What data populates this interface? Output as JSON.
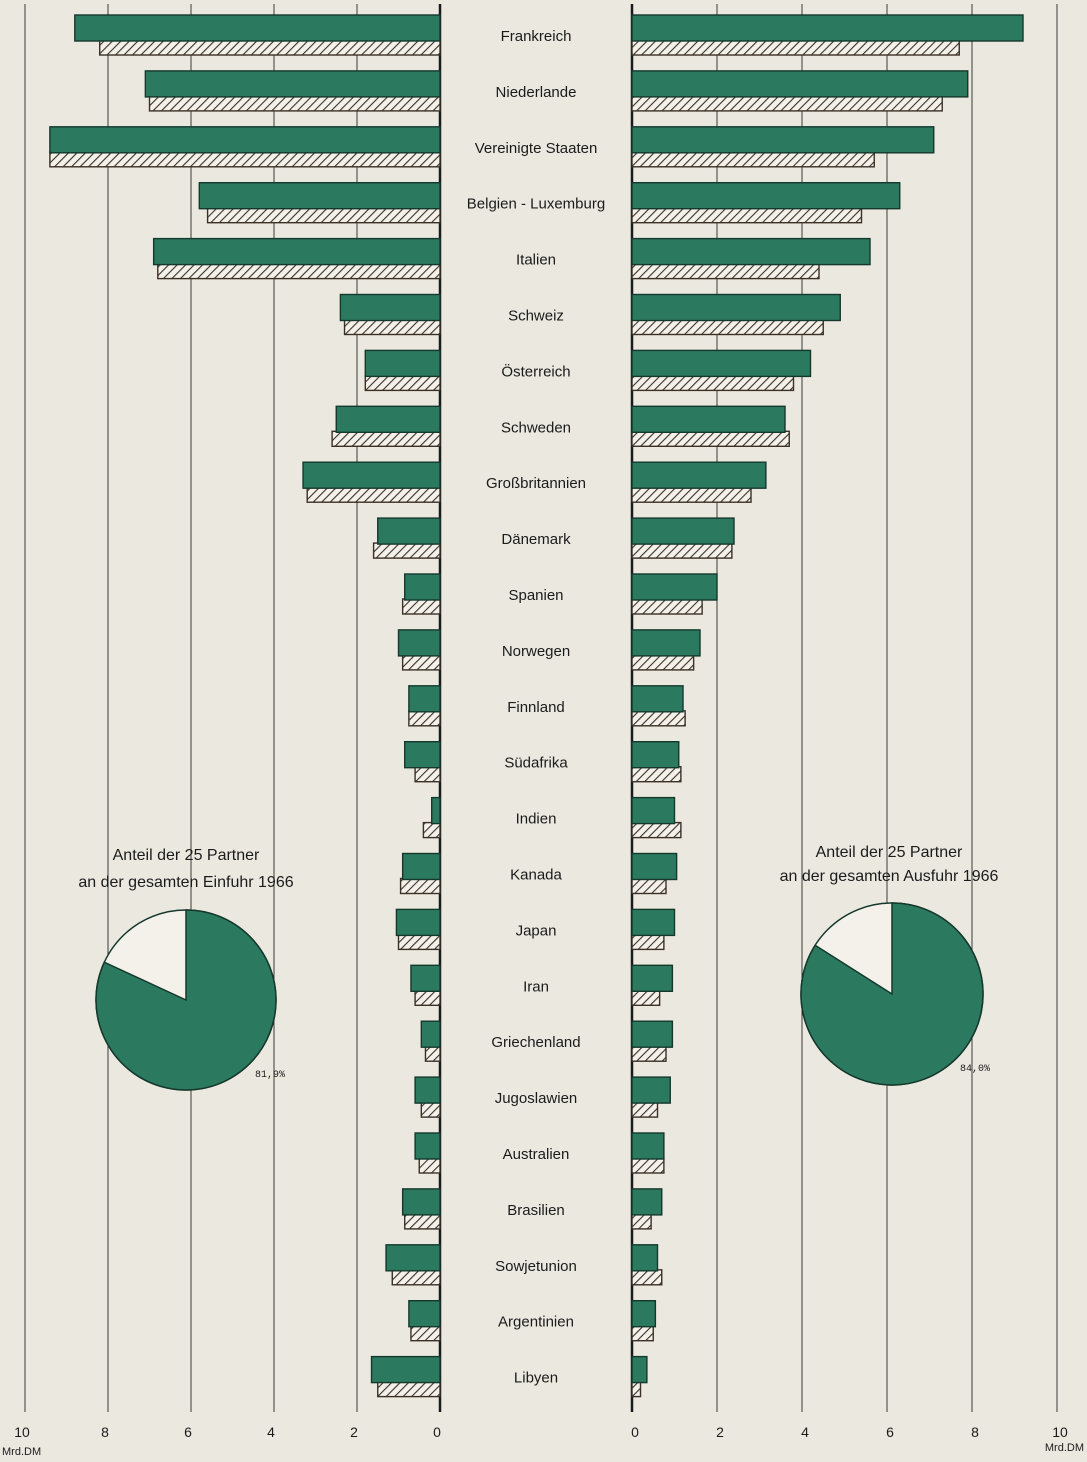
{
  "chart_data": {
    "type": "bar",
    "orientation": "horizontal-butterfly",
    "categories": [
      "Frankreich",
      "Niederlande",
      "Vereinigte Staaten",
      "Belgien - Luxemburg",
      "Italien",
      "Schweiz",
      "Österreich",
      "Schweden",
      "Großbritannien",
      "Dänemark",
      "Spanien",
      "Norwegen",
      "Finnland",
      "Südafrika",
      "Indien",
      "Kanada",
      "Japan",
      "Iran",
      "Griechenland",
      "Jugoslawien",
      "Australien",
      "Brasilien",
      "Sowjetunion",
      "Argentinien",
      "Libyen"
    ],
    "panels": [
      {
        "side": "left",
        "series": [
          {
            "style": "solid",
            "values": [
              8.8,
              7.1,
              9.4,
              5.8,
              6.9,
              2.4,
              1.8,
              2.5,
              3.3,
              1.5,
              0.85,
              1.0,
              0.75,
              0.85,
              0.2,
              0.9,
              1.05,
              0.7,
              0.45,
              0.6,
              0.6,
              0.9,
              1.3,
              0.75,
              1.65
            ]
          },
          {
            "style": "hatched",
            "values": [
              8.2,
              7.0,
              9.4,
              5.6,
              6.8,
              2.3,
              1.8,
              2.6,
              3.2,
              1.6,
              0.9,
              0.9,
              0.75,
              0.6,
              0.4,
              0.95,
              1.0,
              0.6,
              0.35,
              0.45,
              0.5,
              0.85,
              1.15,
              0.7,
              1.5
            ]
          }
        ],
        "xlim": [
          10,
          0
        ],
        "ticks": [
          "10",
          "8",
          "6",
          "4",
          "2",
          "0"
        ],
        "unit": "Mrd.DM"
      },
      {
        "side": "right",
        "series": [
          {
            "style": "solid",
            "values": [
              9.2,
              7.9,
              7.1,
              6.3,
              5.6,
              4.9,
              4.2,
              3.6,
              3.15,
              2.4,
              2.0,
              1.6,
              1.2,
              1.1,
              1.0,
              1.05,
              1.0,
              0.95,
              0.95,
              0.9,
              0.75,
              0.7,
              0.6,
              0.55,
              0.35
            ]
          },
          {
            "style": "hatched",
            "values": [
              7.7,
              7.3,
              5.7,
              5.4,
              4.4,
              4.5,
              3.8,
              3.7,
              2.8,
              2.35,
              1.65,
              1.45,
              1.25,
              1.15,
              1.15,
              0.8,
              0.75,
              0.65,
              0.8,
              0.6,
              0.75,
              0.45,
              0.7,
              0.5,
              0.2
            ]
          }
        ],
        "xlim": [
          0,
          10
        ],
        "ticks": [
          "0",
          "2",
          "4",
          "6",
          "8",
          "10"
        ],
        "unit": "Mrd.DM"
      }
    ],
    "pies": [
      {
        "title_line1": "Anteil der 25 Partner",
        "title_line2": "an der gesamten Einfuhr 1966",
        "percent": 81.9,
        "label": "81,9%"
      },
      {
        "title_line1": "Anteil der 25 Partner",
        "title_line2": "an der gesamten Ausfuhr 1966",
        "percent": 84.0,
        "label": "84,0%"
      }
    ]
  },
  "colors": {
    "solid": "#2b7a60",
    "hatch": "#3a3026",
    "background": "#ebe8df",
    "ink": "#1b1b1b"
  }
}
